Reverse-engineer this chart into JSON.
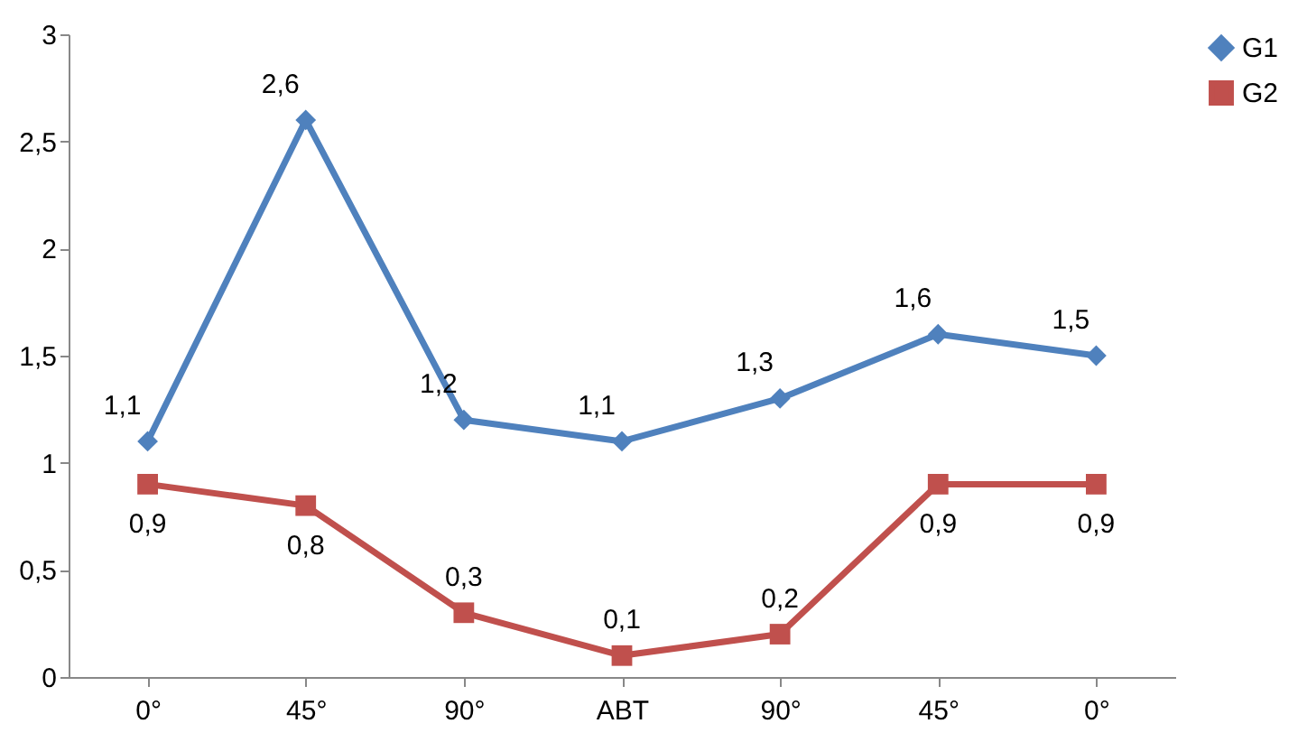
{
  "chart_data": {
    "type": "line",
    "categories": [
      "0°",
      "45°",
      "90°",
      "ABT",
      "90°",
      "45°",
      "0°"
    ],
    "series": [
      {
        "name": "G1",
        "color": "#4f81bd",
        "marker": "diamond",
        "values": [
          1.1,
          2.6,
          1.2,
          1.1,
          1.3,
          1.6,
          1.5
        ],
        "value_labels": [
          "1,1",
          "2,6",
          "1,2",
          "1,1",
          "1,3",
          "1,6",
          "1,5"
        ]
      },
      {
        "name": "G2",
        "color": "#c0504d",
        "marker": "square",
        "values": [
          0.9,
          0.8,
          0.3,
          0.1,
          0.2,
          0.9,
          0.9
        ],
        "value_labels": [
          "0,9",
          "0,8",
          "0,3",
          "0,1",
          "0,2",
          "0,9",
          "0,9"
        ]
      }
    ],
    "ylim": [
      0,
      3
    ],
    "yticks": [
      0,
      {
        "value": 0.5,
        "label": "0,5"
      },
      1,
      {
        "value": 1.5,
        "label": "1,5"
      },
      2,
      {
        "value": 2.5,
        "label": "2,5"
      },
      3
    ],
    "legend": "right",
    "line_style": "solid"
  }
}
